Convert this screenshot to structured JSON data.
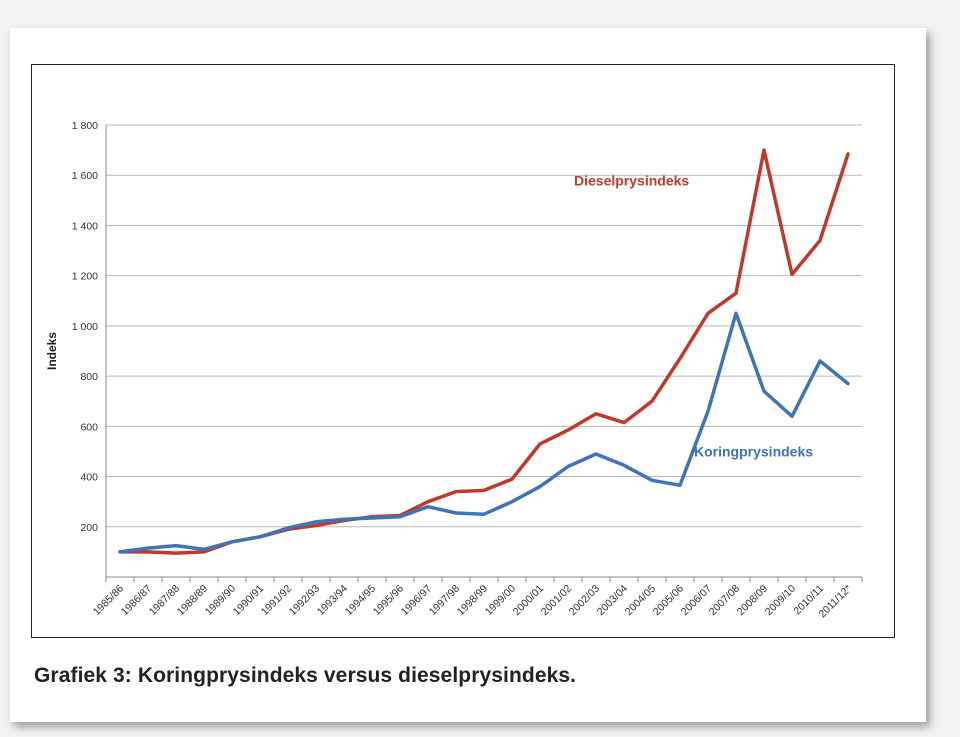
{
  "caption": "Grafiek 3: Koringprysindeks versus dieselprysindeks.",
  "chart_data": {
    "type": "line",
    "title": "",
    "xlabel": "",
    "ylabel": "Indeks",
    "ylim": [
      0,
      1800
    ],
    "yticks": [
      200,
      400,
      600,
      800,
      1000,
      1200,
      1400,
      1600,
      1800
    ],
    "ytick_labels": [
      "200",
      "400",
      "600",
      "800",
      "1 000",
      "1 200",
      "1 400",
      "1 600",
      "1 800"
    ],
    "grid": true,
    "categories": [
      "1985/86",
      "1986/87",
      "1987/88",
      "1988/89",
      "1989/90",
      "1990/91",
      "1991/92",
      "1992/93",
      "1993/94",
      "1994/95",
      "1995/96",
      "1996/97",
      "1997/98",
      "1998/99",
      "1999/00",
      "2000/01",
      "2001/02",
      "2002/03",
      "2003/04",
      "2004/05",
      "2005/06",
      "2006/07",
      "2007/08",
      "2008/09",
      "2009/10",
      "2010/11",
      "2011/12*"
    ],
    "series": [
      {
        "name": "Dieselprysindeks",
        "color": "#c0392b",
        "values": [
          100,
          100,
          95,
          100,
          140,
          160,
          190,
          205,
          225,
          240,
          245,
          300,
          340,
          345,
          390,
          530,
          585,
          650,
          615,
          700,
          870,
          1050,
          1130,
          1700,
          1205,
          1340,
          1685
        ]
      },
      {
        "name": "Koringprysindeks",
        "color": "#3f74b8",
        "values": [
          100,
          115,
          125,
          110,
          140,
          160,
          195,
          220,
          230,
          235,
          240,
          280,
          255,
          250,
          300,
          360,
          440,
          490,
          445,
          385,
          365,
          660,
          1050,
          740,
          640,
          860,
          770
        ]
      }
    ]
  }
}
